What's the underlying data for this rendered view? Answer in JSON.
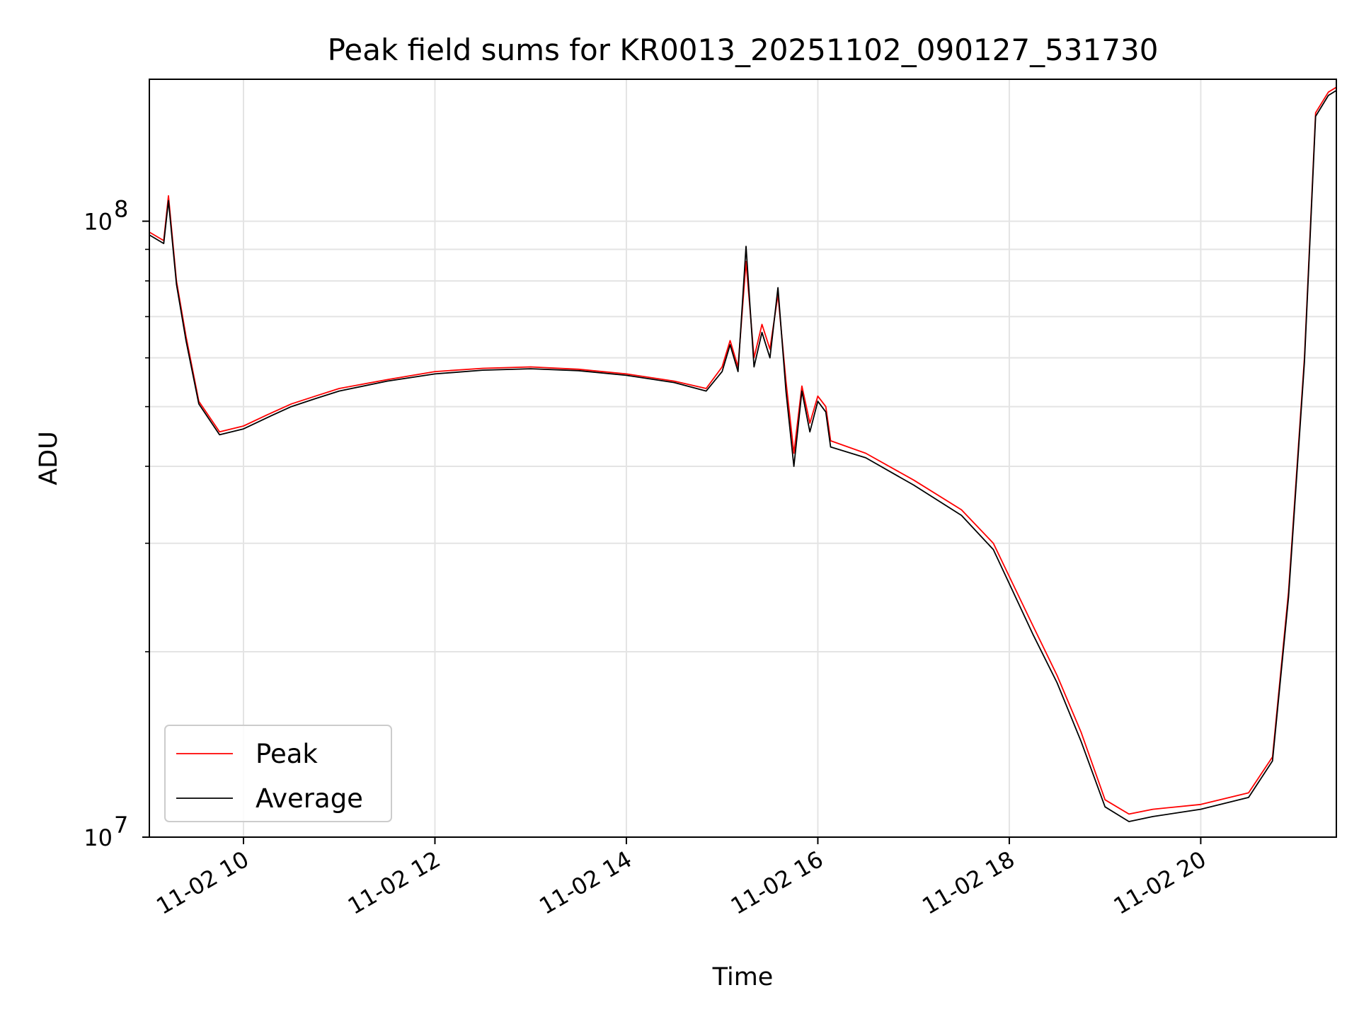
{
  "chart_data": {
    "type": "line",
    "title": "Peak field sums for KR0013_20251102_090127_531730",
    "xlabel": "Time",
    "ylabel": "ADU",
    "yscale": "log",
    "grid": true,
    "legend_position": "lower-left",
    "xlim": [
      "11-02 09:01",
      "11-02 21:25"
    ],
    "ylim": [
      10000000,
      170000000
    ],
    "x_ticks": [
      "11-02 10",
      "11-02 12",
      "11-02 14",
      "11-02 16",
      "11-02 18",
      "11-02 20"
    ],
    "y_ticks": [
      {
        "value": 10000000,
        "base": "10",
        "exp": "7"
      },
      {
        "value": 100000000,
        "base": "10",
        "exp": "8"
      }
    ],
    "series": [
      {
        "name": "Peak",
        "color": "#ff0000",
        "points": [
          [
            "11-02 09:01",
            96000000
          ],
          [
            "11-02 09:10",
            93000000
          ],
          [
            "11-02 09:13",
            110000000
          ],
          [
            "11-02 09:18",
            80000000
          ],
          [
            "11-02 09:24",
            65000000
          ],
          [
            "11-02 09:32",
            51000000
          ],
          [
            "11-02 09:45",
            45500000
          ],
          [
            "11-02 10:00",
            46500000
          ],
          [
            "11-02 10:15",
            48500000
          ],
          [
            "11-02 10:30",
            50500000
          ],
          [
            "11-02 10:45",
            52000000
          ],
          [
            "11-02 11:00",
            53500000
          ],
          [
            "11-02 11:30",
            55300000
          ],
          [
            "11-02 12:00",
            57000000
          ],
          [
            "11-02 12:30",
            57700000
          ],
          [
            "11-02 13:00",
            58000000
          ],
          [
            "11-02 13:30",
            57500000
          ],
          [
            "11-02 14:00",
            56500000
          ],
          [
            "11-02 14:30",
            55000000
          ],
          [
            "11-02 14:50",
            53500000
          ],
          [
            "11-02 15:00",
            58000000
          ],
          [
            "11-02 15:05",
            64000000
          ],
          [
            "11-02 15:10",
            58000000
          ],
          [
            "11-02 15:15",
            86000000
          ],
          [
            "11-02 15:20",
            60000000
          ],
          [
            "11-02 15:25",
            68000000
          ],
          [
            "11-02 15:30",
            62000000
          ],
          [
            "11-02 15:35",
            76000000
          ],
          [
            "11-02 15:40",
            55000000
          ],
          [
            "11-02 15:45",
            42000000
          ],
          [
            "11-02 15:50",
            54000000
          ],
          [
            "11-02 15:55",
            47000000
          ],
          [
            "11-02 16:00",
            52000000
          ],
          [
            "11-02 16:05",
            50000000
          ],
          [
            "11-02 16:08",
            44000000
          ],
          [
            "11-02 16:30",
            42000000
          ],
          [
            "11-02 17:00",
            38000000
          ],
          [
            "11-02 17:30",
            34000000
          ],
          [
            "11-02 17:50",
            30000000
          ],
          [
            "11-02 18:00",
            26500000
          ],
          [
            "11-02 18:15",
            22000000
          ],
          [
            "11-02 18:30",
            18300000
          ],
          [
            "11-02 18:45",
            14800000
          ],
          [
            "11-02 19:00",
            11500000
          ],
          [
            "11-02 19:15",
            10900000
          ],
          [
            "11-02 19:30",
            11100000
          ],
          [
            "11-02 20:00",
            11300000
          ],
          [
            "11-02 20:30",
            11800000
          ],
          [
            "11-02 20:45",
            13500000
          ],
          [
            "11-02 20:55",
            25000000
          ],
          [
            "11-02 21:05",
            60000000
          ],
          [
            "11-02 21:12",
            150000000
          ],
          [
            "11-02 21:20",
            162000000
          ],
          [
            "11-02 21:25",
            165000000
          ]
        ]
      },
      {
        "name": "Average",
        "color": "#000000",
        "points": [
          [
            "11-02 09:01",
            95000000
          ],
          [
            "11-02 09:10",
            92000000
          ],
          [
            "11-02 09:13",
            108000000
          ],
          [
            "11-02 09:18",
            79000000
          ],
          [
            "11-02 09:24",
            64000000
          ],
          [
            "11-02 09:32",
            50500000
          ],
          [
            "11-02 09:45",
            45000000
          ],
          [
            "11-02 10:00",
            46000000
          ],
          [
            "11-02 10:15",
            48000000
          ],
          [
            "11-02 10:30",
            50000000
          ],
          [
            "11-02 10:45",
            51500000
          ],
          [
            "11-02 11:00",
            53000000
          ],
          [
            "11-02 11:30",
            55000000
          ],
          [
            "11-02 12:00",
            56500000
          ],
          [
            "11-02 12:30",
            57300000
          ],
          [
            "11-02 13:00",
            57600000
          ],
          [
            "11-02 13:30",
            57200000
          ],
          [
            "11-02 14:00",
            56200000
          ],
          [
            "11-02 14:30",
            54700000
          ],
          [
            "11-02 14:50",
            53000000
          ],
          [
            "11-02 15:00",
            57000000
          ],
          [
            "11-02 15:05",
            63000000
          ],
          [
            "11-02 15:10",
            57000000
          ],
          [
            "11-02 15:15",
            91000000
          ],
          [
            "11-02 15:20",
            58000000
          ],
          [
            "11-02 15:25",
            66000000
          ],
          [
            "11-02 15:30",
            60000000
          ],
          [
            "11-02 15:35",
            78000000
          ],
          [
            "11-02 15:40",
            53000000
          ],
          [
            "11-02 15:45",
            40000000
          ],
          [
            "11-02 15:50",
            53000000
          ],
          [
            "11-02 15:55",
            45500000
          ],
          [
            "11-02 16:00",
            51000000
          ],
          [
            "11-02 16:05",
            49000000
          ],
          [
            "11-02 16:08",
            43000000
          ],
          [
            "11-02 16:30",
            41300000
          ],
          [
            "11-02 17:00",
            37300000
          ],
          [
            "11-02 17:30",
            33300000
          ],
          [
            "11-02 17:50",
            29300000
          ],
          [
            "11-02 18:00",
            25800000
          ],
          [
            "11-02 18:15",
            21300000
          ],
          [
            "11-02 18:30",
            17800000
          ],
          [
            "11-02 18:45",
            14300000
          ],
          [
            "11-02 19:00",
            11200000
          ],
          [
            "11-02 19:15",
            10600000
          ],
          [
            "11-02 19:30",
            10800000
          ],
          [
            "11-02 20:00",
            11100000
          ],
          [
            "11-02 20:30",
            11600000
          ],
          [
            "11-02 20:45",
            13300000
          ],
          [
            "11-02 20:55",
            24500000
          ],
          [
            "11-02 21:05",
            59000000
          ],
          [
            "11-02 21:12",
            148000000
          ],
          [
            "11-02 21:20",
            160000000
          ],
          [
            "11-02 21:25",
            163000000
          ]
        ]
      }
    ]
  }
}
